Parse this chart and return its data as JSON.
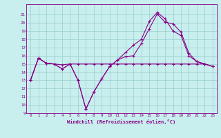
{
  "title": "",
  "xlabel": "Windchill (Refroidissement éolien,°C)",
  "ylabel": "",
  "bg_color": "#c8eeee",
  "line_color": "#880088",
  "grid_color": "#99cccc",
  "ylim": [
    9,
    22
  ],
  "xlim": [
    -0.5,
    23.5
  ],
  "yticks": [
    9,
    10,
    11,
    12,
    13,
    14,
    15,
    16,
    17,
    18,
    19,
    20,
    21
  ],
  "xticks": [
    0,
    1,
    2,
    3,
    4,
    5,
    6,
    7,
    8,
    9,
    10,
    11,
    12,
    13,
    14,
    15,
    16,
    17,
    18,
    19,
    20,
    21,
    22,
    23
  ],
  "line1_x": [
    0,
    1,
    2,
    3,
    4,
    5,
    6,
    7,
    8,
    9,
    10,
    11,
    12,
    13,
    14,
    15,
    16,
    17,
    18,
    19,
    20,
    21,
    22,
    23
  ],
  "line1_y": [
    13,
    15.7,
    15.1,
    15.0,
    14.4,
    15.0,
    13.0,
    9.5,
    11.6,
    13.2,
    14.7,
    15.5,
    15.9,
    16.0,
    17.5,
    19.3,
    21.1,
    20.1,
    19.9,
    18.9,
    16.3,
    15.3,
    15.0,
    14.7
  ],
  "line2_x": [
    0,
    1,
    2,
    3,
    4,
    5,
    6,
    7,
    8,
    9,
    10,
    11,
    12,
    13,
    14,
    15,
    16,
    17,
    18,
    19,
    20,
    21,
    22,
    23
  ],
  "line2_y": [
    13,
    15.7,
    15.1,
    15.0,
    14.4,
    15.0,
    13.0,
    9.5,
    11.6,
    13.2,
    14.7,
    15.5,
    16.4,
    17.3,
    18.0,
    20.2,
    21.3,
    20.5,
    19.0,
    18.5,
    16.0,
    15.3,
    15.0,
    14.7
  ],
  "line3_x": [
    0,
    1,
    2,
    3,
    4,
    5,
    6,
    7,
    8,
    9,
    10,
    11,
    12,
    13,
    14,
    15,
    16,
    17,
    18,
    19,
    20,
    21,
    22,
    23
  ],
  "line3_y": [
    13,
    15.7,
    15.1,
    15.0,
    14.9,
    15.0,
    15.0,
    15.0,
    15.0,
    15.0,
    15.0,
    15.0,
    15.0,
    15.0,
    15.0,
    15.0,
    15.0,
    15.0,
    15.0,
    15.0,
    15.0,
    15.0,
    15.0,
    14.7
  ],
  "marker": "+",
  "markersize": 3,
  "linewidth": 0.8
}
